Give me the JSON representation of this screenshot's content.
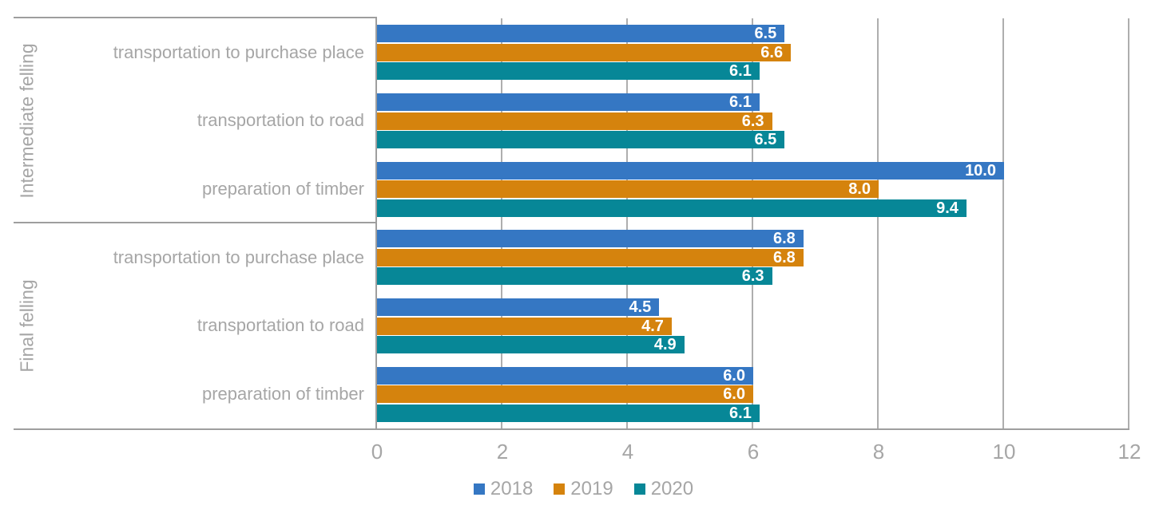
{
  "chart_data": {
    "type": "bar",
    "orientation": "horizontal",
    "title": "",
    "xlabel": "",
    "ylabel": "",
    "xlim": [
      0,
      12
    ],
    "x_ticks": [
      0,
      2,
      4,
      6,
      8,
      10,
      12
    ],
    "grid": true,
    "legend_position": "bottom-center",
    "value_label_decimals": 1,
    "series": [
      {
        "name": "2018",
        "color": "#3577c3"
      },
      {
        "name": "2019",
        "color": "#d5830d"
      },
      {
        "name": "2020",
        "color": "#078797"
      }
    ],
    "groups": [
      {
        "group": "Intermediate felling",
        "categories": [
          {
            "label": "transportation to purchase place",
            "values": [
              6.5,
              6.6,
              6.1
            ]
          },
          {
            "label": "transportation to road",
            "values": [
              6.1,
              6.3,
              6.5
            ]
          },
          {
            "label": "preparation of timber",
            "values": [
              10.0,
              8.0,
              9.4
            ]
          }
        ]
      },
      {
        "group": "Final felling",
        "categories": [
          {
            "label": "transportation to purchase place",
            "values": [
              6.8,
              6.8,
              6.3
            ]
          },
          {
            "label": "transportation to road",
            "values": [
              4.5,
              4.7,
              4.9
            ]
          },
          {
            "label": "preparation of timber",
            "values": [
              6.0,
              6.0,
              6.1
            ]
          }
        ]
      }
    ]
  },
  "colors": {
    "grid": "#aeaeae",
    "axis": "#9e9e9e",
    "text": "#a6a6a6",
    "bar_label": "#ffffff",
    "background": "#ffffff"
  },
  "legend": {
    "items": [
      {
        "label": "2018",
        "color": "#3577c3"
      },
      {
        "label": "2019",
        "color": "#d5830d"
      },
      {
        "label": "2020",
        "color": "#078797"
      }
    ]
  }
}
